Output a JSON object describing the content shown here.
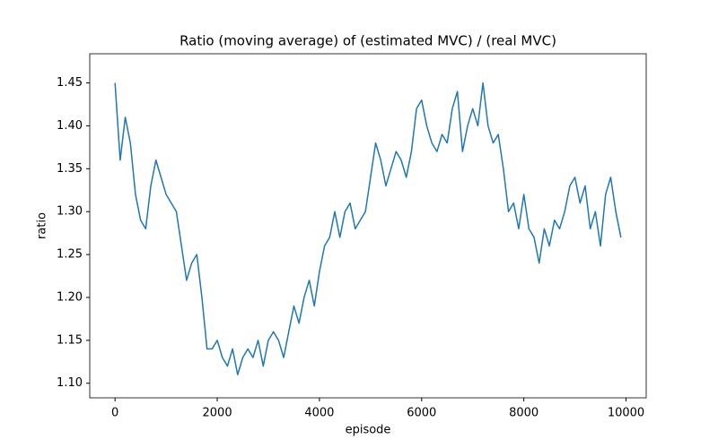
{
  "chart_data": {
    "type": "line",
    "title": "Ratio (moving average) of (estimated MVC) / (real MVC)",
    "x_label": "episode",
    "y_label": "ratio",
    "x": [
      0,
      100,
      200,
      300,
      400,
      500,
      600,
      700,
      800,
      900,
      1000,
      1100,
      1200,
      1300,
      1400,
      1500,
      1600,
      1700,
      1800,
      1900,
      2000,
      2100,
      2200,
      2300,
      2400,
      2500,
      2600,
      2700,
      2800,
      2900,
      3000,
      3100,
      3200,
      3300,
      3400,
      3500,
      3600,
      3700,
      3800,
      3900,
      4000,
      4100,
      4200,
      4300,
      4400,
      4500,
      4600,
      4700,
      4800,
      4900,
      5000,
      5100,
      5200,
      5300,
      5400,
      5500,
      5600,
      5700,
      5800,
      5900,
      6000,
      6100,
      6200,
      6300,
      6400,
      6500,
      6600,
      6700,
      6800,
      6900,
      7000,
      7100,
      7200,
      7300,
      7400,
      7500,
      7600,
      7700,
      7800,
      7900,
      8000,
      8100,
      8200,
      8300,
      8400,
      8500,
      8600,
      8700,
      8800,
      8900,
      9000,
      9100,
      9200,
      9300,
      9400,
      9500,
      9600,
      9700,
      9800,
      9900
    ],
    "series": [
      {
        "name": "ratio",
        "color": "#1f77b4",
        "values": [
          1.45,
          1.36,
          1.41,
          1.38,
          1.32,
          1.29,
          1.28,
          1.33,
          1.36,
          1.34,
          1.32,
          1.31,
          1.3,
          1.26,
          1.22,
          1.24,
          1.25,
          1.2,
          1.14,
          1.14,
          1.15,
          1.13,
          1.12,
          1.14,
          1.11,
          1.13,
          1.14,
          1.13,
          1.15,
          1.12,
          1.15,
          1.16,
          1.15,
          1.13,
          1.16,
          1.19,
          1.17,
          1.2,
          1.22,
          1.19,
          1.23,
          1.26,
          1.27,
          1.3,
          1.27,
          1.3,
          1.31,
          1.28,
          1.29,
          1.3,
          1.34,
          1.38,
          1.36,
          1.33,
          1.35,
          1.37,
          1.36,
          1.34,
          1.37,
          1.42,
          1.43,
          1.4,
          1.38,
          1.37,
          1.39,
          1.38,
          1.42,
          1.44,
          1.37,
          1.4,
          1.42,
          1.4,
          1.45,
          1.4,
          1.38,
          1.39,
          1.35,
          1.3,
          1.31,
          1.28,
          1.32,
          1.28,
          1.27,
          1.24,
          1.28,
          1.26,
          1.29,
          1.28,
          1.3,
          1.33,
          1.34,
          1.31,
          1.33,
          1.28,
          1.3,
          1.26,
          1.32,
          1.34,
          1.3,
          1.27
        ]
      }
    ],
    "xlim": [
      -495,
      10395
    ],
    "ylim": [
      1.083,
      1.484
    ],
    "xticks": [
      0,
      2000,
      4000,
      6000,
      8000,
      10000
    ],
    "yticks": [
      {
        "value": 1.1,
        "label": "1.10"
      },
      1.15,
      {
        "value": 1.2,
        "label": "1.20"
      },
      1.25,
      {
        "value": 1.3,
        "label": "1.30"
      },
      1.35,
      {
        "value": 1.4,
        "label": "1.40"
      },
      1.45
    ],
    "grid": false
  }
}
